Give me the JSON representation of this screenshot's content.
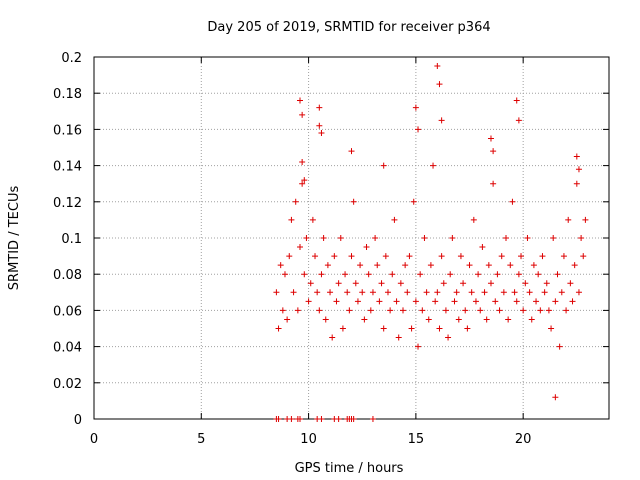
{
  "chart_data": {
    "type": "scatter",
    "title": "Day 205 of 2019, SRMTID for receiver p364",
    "xlabel": "GPS time / hours",
    "ylabel": "SRMTID / TECUs",
    "xlim": [
      0,
      24
    ],
    "ylim": [
      0,
      0.2
    ],
    "xticks": [
      0,
      5,
      10,
      15,
      20
    ],
    "xtick_labels": [
      "0",
      "5",
      "10",
      "15",
      "20"
    ],
    "yticks": [
      0,
      0.02,
      0.04,
      0.06,
      0.08,
      0.1,
      0.12,
      0.14,
      0.16,
      0.18,
      0.2
    ],
    "ytick_labels": [
      "0",
      "0.02",
      "0.04",
      "0.06",
      "0.08",
      "0.1",
      "0.12",
      "0.14",
      "0.16",
      "0.18",
      "0.2"
    ],
    "grid": true,
    "marker": "+",
    "series": [
      {
        "name": "SRMTID p364",
        "color": "#dd0000",
        "x": [
          8.5,
          8.6,
          8.7,
          8.8,
          8.9,
          9.0,
          9.1,
          9.2,
          9.3,
          9.4,
          9.5,
          9.6,
          9.7,
          9.8,
          9.9,
          10.0,
          10.1,
          10.2,
          10.3,
          10.4,
          10.5,
          10.6,
          10.7,
          10.8,
          10.9,
          11.0,
          11.1,
          11.2,
          11.3,
          11.4,
          11.5,
          11.6,
          11.7,
          11.8,
          11.9,
          12.0,
          12.1,
          12.2,
          12.3,
          12.4,
          12.5,
          12.6,
          12.7,
          12.8,
          12.9,
          13.0,
          13.1,
          13.2,
          13.3,
          13.4,
          13.5,
          13.6,
          13.7,
          13.8,
          13.9,
          14.0,
          14.1,
          14.2,
          14.3,
          14.4,
          14.5,
          14.6,
          14.7,
          14.8,
          14.9,
          15.0,
          15.1,
          15.2,
          15.3,
          15.4,
          15.5,
          15.6,
          15.7,
          15.8,
          15.9,
          16.0,
          16.1,
          16.2,
          16.3,
          16.4,
          16.5,
          16.6,
          16.7,
          16.8,
          16.9,
          17.0,
          17.1,
          17.2,
          17.3,
          17.4,
          17.5,
          17.6,
          17.7,
          17.8,
          17.9,
          18.0,
          18.1,
          18.2,
          18.3,
          18.4,
          18.5,
          18.6,
          18.7,
          18.8,
          18.9,
          19.0,
          19.1,
          19.2,
          19.3,
          19.4,
          19.5,
          19.6,
          19.7,
          19.8,
          19.9,
          20.0,
          20.1,
          20.2,
          20.3,
          20.4,
          20.5,
          20.6,
          20.7,
          20.8,
          20.9,
          21.0,
          21.1,
          21.2,
          21.3,
          21.4,
          21.5,
          21.6,
          21.7,
          21.8,
          21.9,
          22.0,
          22.1,
          22.2,
          22.3,
          22.4,
          22.5,
          22.6,
          22.7,
          22.8,
          22.9,
          9.6,
          9.7,
          9.8,
          10.5,
          10.6,
          16.0,
          16.1,
          16.2,
          15.0,
          15.1,
          19.7,
          19.8,
          18.5,
          18.6,
          22.5,
          22.6,
          9.7,
          10.5,
          12.0,
          13.5,
          21.5
        ],
        "y": [
          0.07,
          0.05,
          0.085,
          0.06,
          0.08,
          0.055,
          0.09,
          0.11,
          0.07,
          0.12,
          0.06,
          0.095,
          0.13,
          0.08,
          0.1,
          0.065,
          0.075,
          0.11,
          0.09,
          0.07,
          0.06,
          0.08,
          0.1,
          0.055,
          0.085,
          0.07,
          0.045,
          0.09,
          0.065,
          0.075,
          0.1,
          0.05,
          0.08,
          0.07,
          0.06,
          0.09,
          0.12,
          0.075,
          0.065,
          0.085,
          0.07,
          0.055,
          0.095,
          0.08,
          0.06,
          0.07,
          0.1,
          0.085,
          0.065,
          0.075,
          0.05,
          0.09,
          0.07,
          0.06,
          0.08,
          0.11,
          0.065,
          0.045,
          0.075,
          0.06,
          0.085,
          0.07,
          0.09,
          0.05,
          0.12,
          0.065,
          0.04,
          0.08,
          0.06,
          0.1,
          0.07,
          0.055,
          0.085,
          0.14,
          0.065,
          0.07,
          0.05,
          0.09,
          0.075,
          0.06,
          0.045,
          0.08,
          0.1,
          0.065,
          0.07,
          0.055,
          0.09,
          0.075,
          0.06,
          0.05,
          0.085,
          0.07,
          0.11,
          0.065,
          0.08,
          0.06,
          0.095,
          0.07,
          0.055,
          0.085,
          0.075,
          0.13,
          0.065,
          0.08,
          0.06,
          0.09,
          0.07,
          0.1,
          0.055,
          0.085,
          0.12,
          0.07,
          0.065,
          0.08,
          0.09,
          0.06,
          0.075,
          0.1,
          0.07,
          0.055,
          0.085,
          0.065,
          0.08,
          0.06,
          0.09,
          0.07,
          0.075,
          0.06,
          0.05,
          0.1,
          0.065,
          0.08,
          0.04,
          0.07,
          0.09,
          0.06,
          0.11,
          0.075,
          0.065,
          0.085,
          0.13,
          0.07,
          0.1,
          0.09,
          0.11,
          0.176,
          0.168,
          0.132,
          0.172,
          0.158,
          0.195,
          0.185,
          0.165,
          0.172,
          0.16,
          0.176,
          0.165,
          0.155,
          0.148,
          0.145,
          0.138,
          0.142,
          0.162,
          0.148,
          0.14,
          0.012
        ],
        "baseline_x": [
          8.5,
          8.6,
          9.0,
          9.2,
          9.5,
          9.6,
          10.4,
          10.6,
          11.2,
          11.4,
          11.8,
          11.9,
          12.0,
          12.1,
          13.0
        ],
        "baseline_y": [
          0,
          0,
          0,
          0,
          0,
          0,
          0,
          0,
          0,
          0,
          0,
          0,
          0,
          0,
          0
        ]
      }
    ]
  }
}
